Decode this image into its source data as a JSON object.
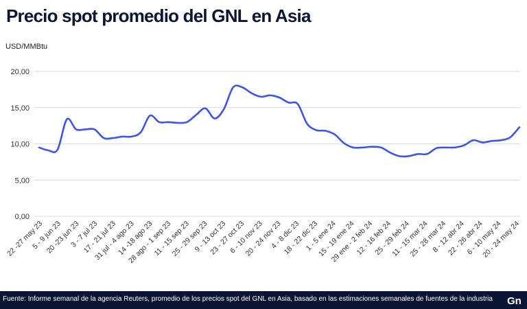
{
  "title": "Precio spot promedio del GNL en Asia",
  "unit_label": "USD/MMBtu",
  "footer": {
    "source": "Fuente: Informe semanal de la agencia Reuters, promedio de los precios spot del GNL en Asia, basado en las estimaciones semanales de fuentes de la industria",
    "logo_text": "Gn"
  },
  "colors": {
    "line": "#3b55e6",
    "footer_bg": "#0b1533",
    "title": "#0b1533"
  },
  "chart_data": {
    "type": "line",
    "ylim": [
      0,
      20
    ],
    "yticks": [
      0,
      5,
      10,
      15,
      20
    ],
    "ytick_labels": [
      "0,00",
      "5,00",
      "10,00",
      "15,00",
      "20,00"
    ],
    "grid": true,
    "x_tick_labels": [
      "22 -27 may 23",
      "5 - 9 jun 23",
      "20 -23 jun 23",
      "3 - 7 jul 23",
      "17 - 21 jul 23",
      "31 jul - 4 ago 23",
      "14 -18 ago 23",
      "28 ago - 1 sep 23",
      "11 - 15 sep 23",
      "25 - 29 sep 23",
      "9 - 13 oct 23",
      "23 - 27 oct 23",
      "6 - 10 nov 23",
      "20 - 24 nov 23",
      "4 - 8 dic 23",
      "18 - 22 dic 23",
      "1 - 5 ene 24",
      "15 - 19 ene 24",
      "29 ene - 2 feb 24",
      "12 - 16 feb 24",
      "25 - 29 feb 24",
      "11 - 15 mar 24",
      "25 - 28 mar 24",
      "8 - 12 abr 24",
      "22 - 26 abr 24",
      "6 - 10 may 24",
      "20 - 24 may 24"
    ],
    "series": [
      {
        "values": [
          9.5,
          9.1,
          9.2,
          13.4,
          12.0,
          12.0,
          12.0,
          10.8,
          10.8,
          11.0,
          11.0,
          11.6,
          13.9,
          13.0,
          13.0,
          12.9,
          13.0,
          14.0,
          14.9,
          13.5,
          14.8,
          17.8,
          17.8,
          17.0,
          16.5,
          16.7,
          16.4,
          15.7,
          15.5,
          12.8,
          11.9,
          11.8,
          11.3,
          10.1,
          9.5,
          9.5,
          9.6,
          9.5,
          8.8,
          8.3,
          8.3,
          8.6,
          8.6,
          9.4,
          9.5,
          9.5,
          9.8,
          10.5,
          10.2,
          10.4,
          10.5,
          10.9,
          12.3
        ]
      }
    ]
  }
}
